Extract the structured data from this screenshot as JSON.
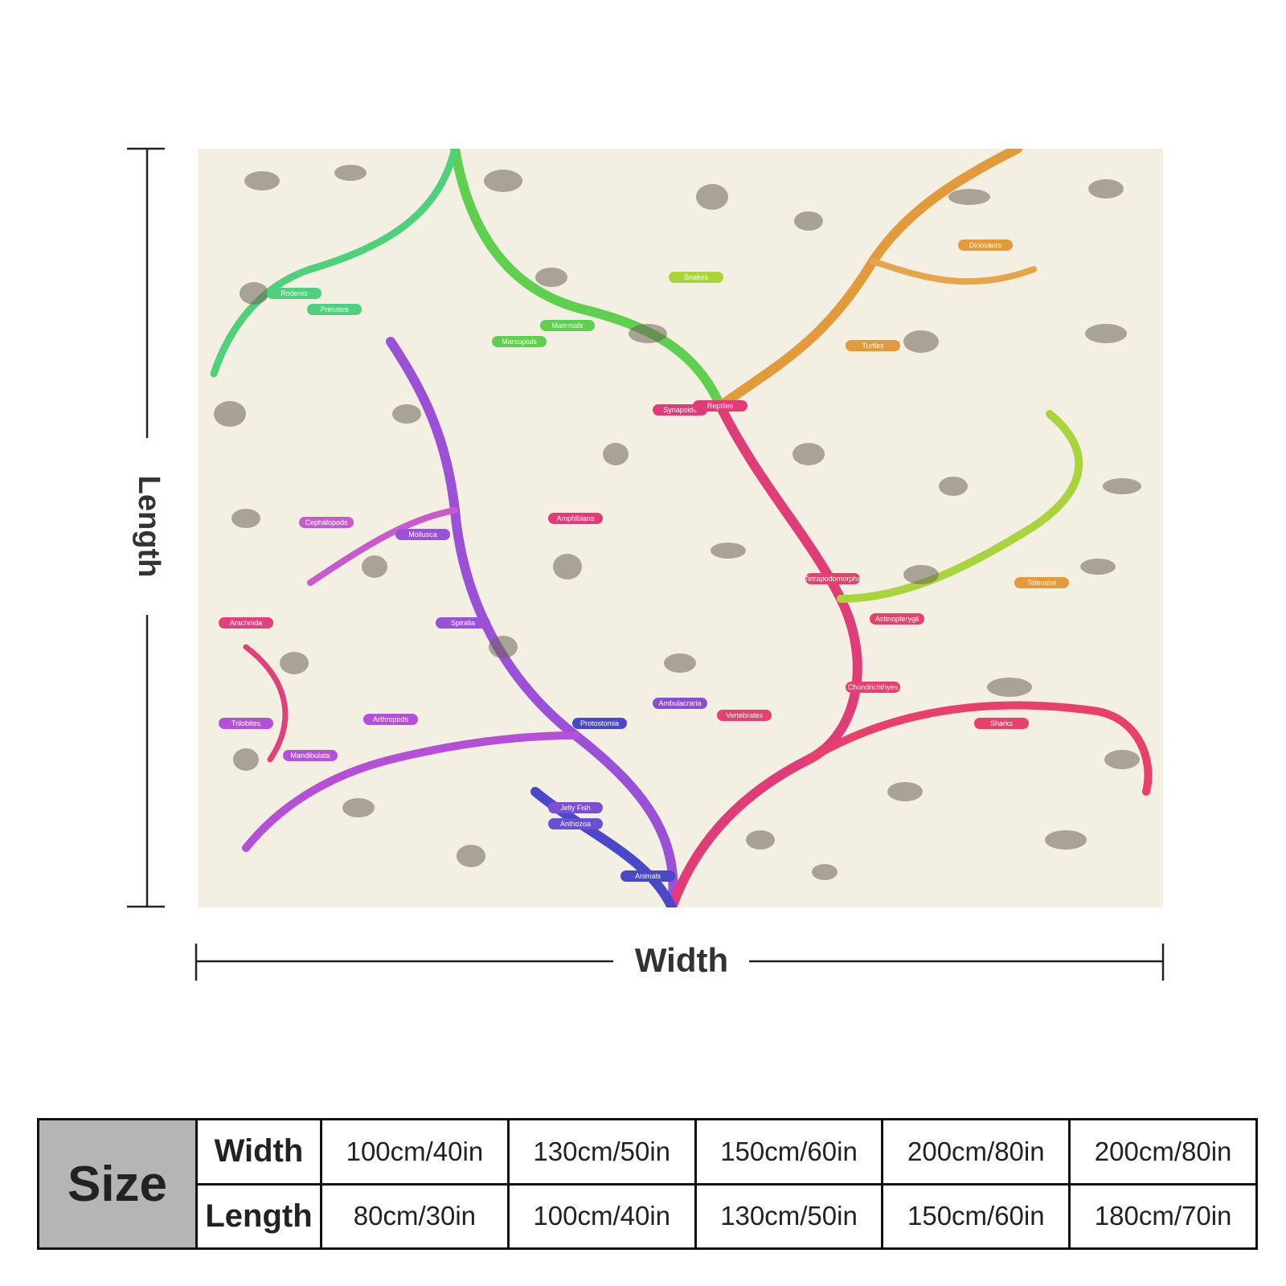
{
  "dimensions": {
    "length_label": "Length",
    "width_label": "Width"
  },
  "artwork": {
    "labels": [
      "Rodents",
      "Primates",
      "Mammals",
      "Marsupials",
      "Snakes",
      "Dinosaurs",
      "Turtles",
      "Synapsids",
      "Reptiles",
      "Amphibians",
      "Cephalopods",
      "Mollusca",
      "Spiralia",
      "Arachnida",
      "Trilobites",
      "Arthropods",
      "Mandibulata",
      "Protostomia",
      "Ambulacraria",
      "Vertebrates",
      "Tetrapodomorpha",
      "Actinopterygii",
      "Teleostei",
      "Chondrichthyes",
      "Sharks",
      "Jelly Fish",
      "Anthozoa",
      "Animals"
    ]
  },
  "table": {
    "header": "Size",
    "rows": [
      {
        "label": "Width",
        "values": [
          "100cm/40in",
          "130cm/50in",
          "150cm/60in",
          "200cm/80in",
          "200cm/80in"
        ]
      },
      {
        "label": "Length",
        "values": [
          "80cm/30in",
          "100cm/40in",
          "130cm/50in",
          "150cm/60in",
          "180cm/70in"
        ]
      }
    ]
  }
}
